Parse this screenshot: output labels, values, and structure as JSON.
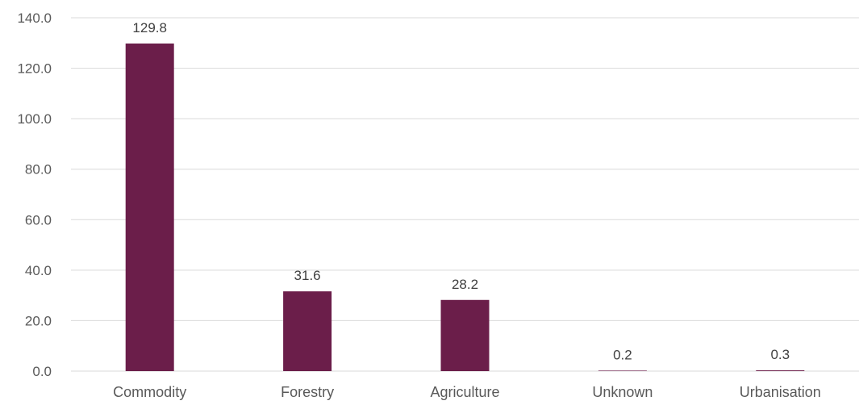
{
  "chart_data": {
    "type": "bar",
    "title": "",
    "xlabel": "",
    "ylabel": "",
    "categories": [
      "Commodity",
      "Forestry",
      "Agriculture",
      "Unknown",
      "Urbanisation"
    ],
    "values": [
      129.8,
      31.6,
      28.2,
      0.2,
      0.3
    ],
    "data_labels": [
      "129.8",
      "31.6",
      "28.2",
      "0.2",
      "0.3"
    ],
    "ylim": [
      0,
      140
    ],
    "yticks": [
      0,
      20,
      40,
      60,
      80,
      100,
      120,
      140
    ],
    "ytick_labels": [
      "0.0",
      "20.0",
      "40.0",
      "60.0",
      "80.0",
      "100.0",
      "120.0",
      "140.0"
    ],
    "grid": true,
    "legend": "none",
    "bar_color": "#6b1e4a"
  }
}
